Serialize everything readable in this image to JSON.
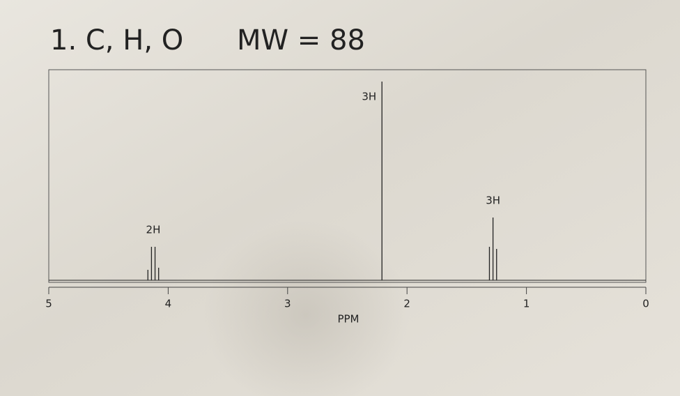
{
  "chart_data": {
    "type": "spectrum",
    "title": "1. C, H, O",
    "subtitle": "MW = 88",
    "x_label": "PPM",
    "xlim": [
      5,
      0
    ],
    "xticks": [
      5,
      4,
      3,
      2,
      1,
      0
    ],
    "ylim": [
      0,
      100
    ],
    "color": "#222222",
    "multiplets": [
      {
        "label": "2H",
        "x": [
          4.17,
          4.14,
          4.11,
          4.08
        ],
        "values": [
          5,
          16,
          16,
          6
        ]
      },
      {
        "label": "3H",
        "x": [
          2.21
        ],
        "values": [
          95
        ]
      },
      {
        "label": "3H",
        "x": [
          1.31,
          1.28,
          1.25
        ],
        "values": [
          16,
          30,
          15
        ]
      }
    ]
  }
}
